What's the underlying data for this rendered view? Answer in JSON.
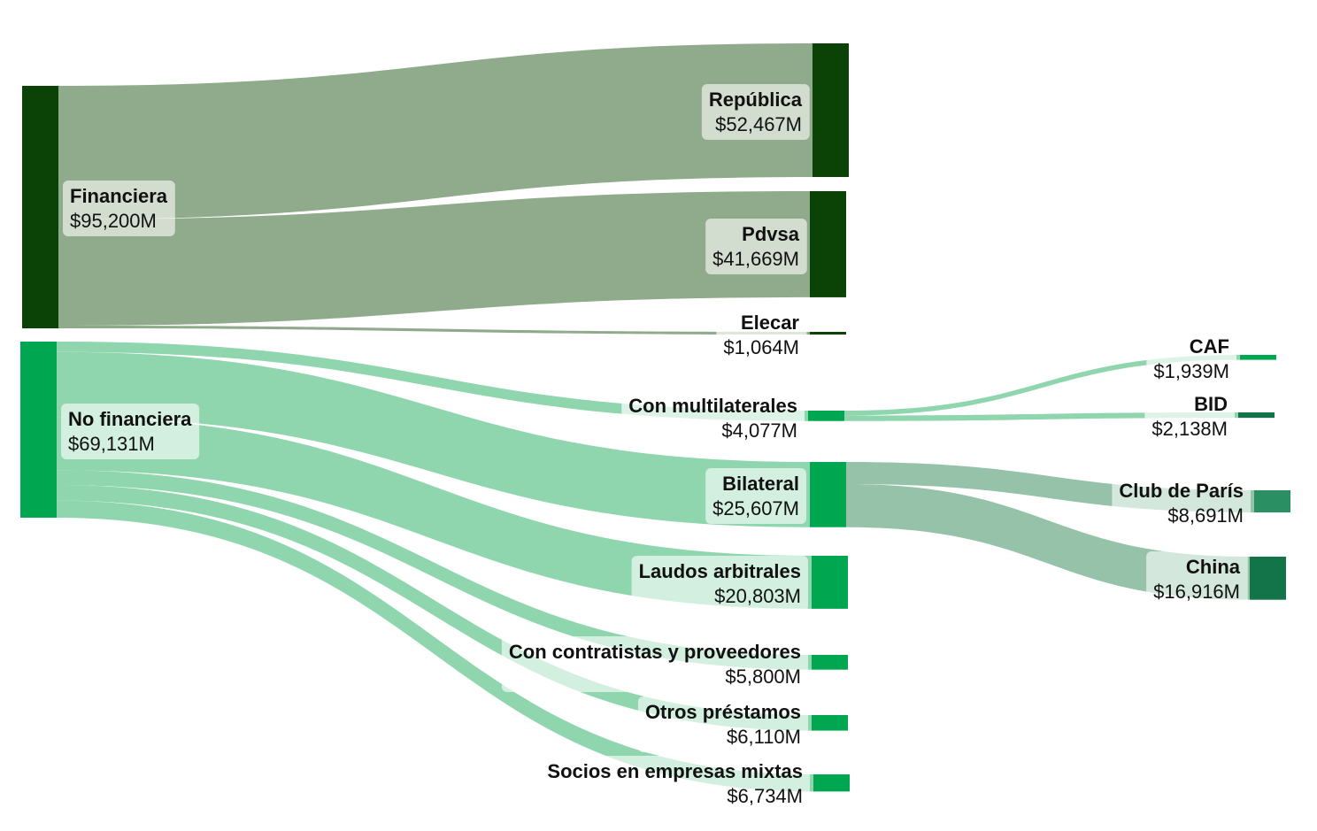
{
  "chart_data": {
    "type": "sankey",
    "title": "",
    "colors": {
      "financiera_node": "#0b4206",
      "financiera_link": "#8fab8b",
      "nofin_node": "#00a650",
      "nofin_link": "#8fd6ae",
      "bilateral_link": "#95c2a9",
      "multilateral_link": "#8fd6ae",
      "club_node": "#2a8f63",
      "china_node": "#13744a",
      "bid_node": "#13744a",
      "caf_node": "#00a650",
      "label_bg": "#ffffff"
    },
    "nodes": [
      {
        "id": "financiera",
        "label": "Financiera",
        "value_label": "$95,200M",
        "value": 95200
      },
      {
        "id": "nofinanciera",
        "label": "No financiera",
        "value_label": "$69,131M",
        "value": 69131
      },
      {
        "id": "republica",
        "label": "República",
        "value_label": "$52,467M",
        "value": 52467
      },
      {
        "id": "pdvsa",
        "label": "Pdvsa",
        "value_label": "$41,669M",
        "value": 41669
      },
      {
        "id": "elecar",
        "label": "Elecar",
        "value_label": "$1,064M",
        "value": 1064
      },
      {
        "id": "multilaterales",
        "label": "Con multilaterales",
        "value_label": "$4,077M",
        "value": 4077
      },
      {
        "id": "bilateral",
        "label": "Bilateral",
        "value_label": "$25,607M",
        "value": 25607
      },
      {
        "id": "laudos",
        "label": "Laudos arbitrales",
        "value_label": "$20,803M",
        "value": 20803
      },
      {
        "id": "contratistas",
        "label": "Con contratistas y proveedores",
        "value_label": "$5,800M",
        "value": 5800
      },
      {
        "id": "otros",
        "label": "Otros préstamos",
        "value_label": "$6,110M",
        "value": 6110
      },
      {
        "id": "socios",
        "label": "Socios en empresas mixtas",
        "value_label": "$6,734M",
        "value": 6734
      },
      {
        "id": "caf",
        "label": "CAF",
        "value_label": "$1,939M",
        "value": 1939
      },
      {
        "id": "bid",
        "label": "BID",
        "value_label": "$2,138M",
        "value": 2138
      },
      {
        "id": "club",
        "label": "Club de París",
        "value_label": "$8,691M",
        "value": 8691
      },
      {
        "id": "china",
        "label": "China",
        "value_label": "$16,916M",
        "value": 16916
      }
    ],
    "links": [
      {
        "source": "financiera",
        "target": "republica",
        "value": 52467
      },
      {
        "source": "financiera",
        "target": "pdvsa",
        "value": 41669
      },
      {
        "source": "financiera",
        "target": "elecar",
        "value": 1064
      },
      {
        "source": "nofinanciera",
        "target": "multilaterales",
        "value": 4077
      },
      {
        "source": "nofinanciera",
        "target": "bilateral",
        "value": 25607
      },
      {
        "source": "nofinanciera",
        "target": "laudos",
        "value": 20803
      },
      {
        "source": "nofinanciera",
        "target": "contratistas",
        "value": 5800
      },
      {
        "source": "nofinanciera",
        "target": "otros",
        "value": 6110
      },
      {
        "source": "nofinanciera",
        "target": "socios",
        "value": 6734
      },
      {
        "source": "multilaterales",
        "target": "caf",
        "value": 1939
      },
      {
        "source": "multilaterales",
        "target": "bid",
        "value": 2138
      },
      {
        "source": "bilateral",
        "target": "club",
        "value": 8691
      },
      {
        "source": "bilateral",
        "target": "china",
        "value": 16916
      }
    ]
  }
}
